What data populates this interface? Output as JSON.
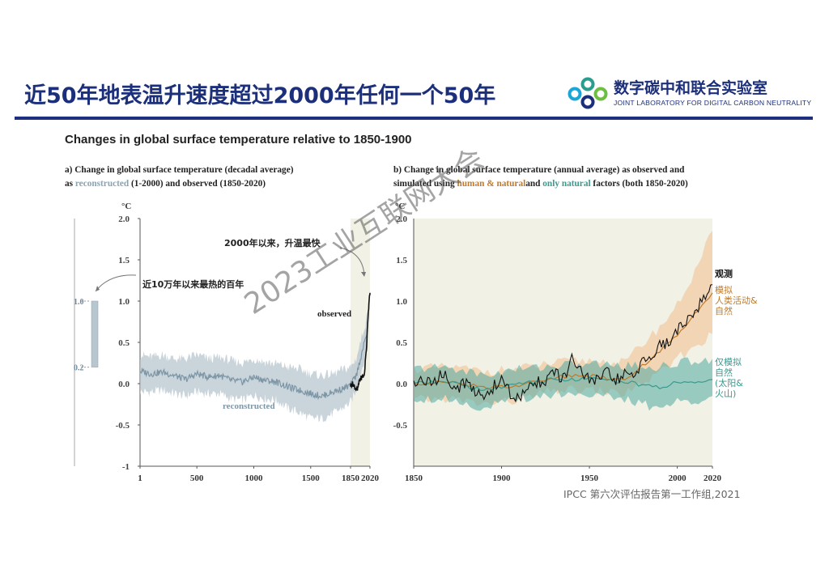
{
  "slide": {
    "title": "近50年地表温升速度超过2000年任何一个50年"
  },
  "logo": {
    "name": "数字碳中和联合实验室",
    "subtitle": "JOINT LABORATORY FOR DIGITAL CARBON NEUTRALITY"
  },
  "source": "IPCC 第六次评估报告第一工作组,2021",
  "watermark": "2023工业互联网大会",
  "chart_data": {
    "title": "Changes in global surface temperature relative to 1850-1900",
    "panels": [
      {
        "id": "a",
        "type": "line",
        "caption_line1": "a) Change in global surface temperature (decadal average)",
        "caption_line2_pre": "as ",
        "caption_line2_recon": "reconstructed",
        "caption_line2_post": " (1-2000) and  observed  (1850-2020)",
        "ylabel": "°C",
        "ylim": [
          -1,
          2
        ],
        "yticks": [
          "2.0",
          "1.5",
          "1.0",
          "0.5",
          "0.0",
          "-0.5",
          "-1"
        ],
        "ytick_values": [
          2.0,
          1.5,
          1.0,
          0.5,
          0.0,
          -0.5,
          -1.0
        ],
        "xticks": [
          "1",
          "500",
          "1000",
          "1500",
          "1850",
          "2020"
        ],
        "xtick_values": [
          1,
          500,
          1000,
          1500,
          1850,
          2020
        ],
        "xlim": [
          1,
          2020
        ],
        "highlight_range": [
          1850,
          2020
        ],
        "annotations": {
          "warmest": "近10万年以来最热的百年",
          "fastest": "2000年以来，升温最快",
          "observed_label": "observed",
          "reconstructed_label": "reconstructed"
        },
        "past_range": {
          "upper": "1.0",
          "lower": "0.2",
          "values": [
            0.2,
            1.0
          ]
        },
        "series": [
          {
            "name": "reconstructed",
            "x": [
              1,
              100,
              200,
              300,
              400,
              500,
              600,
              700,
              800,
              900,
              1000,
              1100,
              1200,
              1300,
              1400,
              1500,
              1600,
              1700,
              1800,
              1850,
              1900,
              2000
            ],
            "y": [
              0.15,
              0.12,
              0.14,
              0.1,
              0.05,
              0.12,
              0.08,
              0.1,
              0.04,
              0.02,
              0.08,
              0.04,
              0.02,
              -0.04,
              -0.08,
              -0.12,
              -0.15,
              -0.1,
              -0.05,
              -0.02,
              0.1,
              0.65
            ],
            "lower": [
              -0.1,
              -0.1,
              -0.08,
              -0.12,
              -0.15,
              -0.1,
              -0.12,
              -0.12,
              -0.18,
              -0.2,
              -0.14,
              -0.18,
              -0.2,
              -0.3,
              -0.35,
              -0.42,
              -0.42,
              -0.36,
              -0.28,
              -0.22,
              -0.08,
              0.45
            ],
            "upper": [
              0.35,
              0.32,
              0.35,
              0.3,
              0.3,
              0.35,
              0.3,
              0.32,
              0.28,
              0.25,
              0.3,
              0.26,
              0.24,
              0.2,
              0.18,
              0.12,
              0.1,
              0.12,
              0.18,
              0.2,
              0.3,
              0.85
            ]
          },
          {
            "name": "observed",
            "x": [
              1850,
              1870,
              1890,
              1910,
              1930,
              1950,
              1970,
              1990,
              2000,
              2010,
              2020
            ],
            "y": [
              -0.02,
              0.0,
              -0.05,
              -0.08,
              0.05,
              0.08,
              0.1,
              0.45,
              0.75,
              0.95,
              1.1
            ]
          }
        ]
      },
      {
        "id": "b",
        "type": "line",
        "caption_line1": "b) Change in global surface temperature (annual average) as  observed  and",
        "caption_line2_pre": "simulated using ",
        "caption_line2_human": "human & natural",
        "caption_line2_mid": "and ",
        "caption_line2_natural": "only natural",
        "caption_line2_post": " factors (both 1850-2020)",
        "ylabel": "°C",
        "ylim": [
          -1,
          2
        ],
        "yticks": [
          "2.0",
          "1.5",
          "1.0",
          "0.5",
          "0.0",
          "-0.5"
        ],
        "ytick_values": [
          2.0,
          1.5,
          1.0,
          0.5,
          0.0,
          -0.5
        ],
        "xticks": [
          "1850",
          "1900",
          "1950",
          "2000",
          "2020"
        ],
        "xtick_values": [
          1850,
          1900,
          1950,
          2000,
          2020
        ],
        "xlim": [
          1850,
          2020
        ],
        "legend": {
          "observed": "观测",
          "human_natural": [
            "模拟",
            "人类活动&",
            "自然"
          ],
          "natural_only": [
            "仅模拟",
            "自然",
            "(太阳&",
            "火山)"
          ]
        },
        "colors": {
          "observed": "#111111",
          "human_natural": "#c07a2a",
          "natural_only": "#3a9a8e"
        },
        "series": [
          {
            "name": "observed",
            "x": [
              1850,
              1855,
              1860,
              1865,
              1870,
              1875,
              1880,
              1885,
              1890,
              1895,
              1900,
              1905,
              1910,
              1915,
              1920,
              1925,
              1930,
              1935,
              1940,
              1945,
              1950,
              1955,
              1960,
              1965,
              1970,
              1975,
              1980,
              1985,
              1990,
              1995,
              2000,
              2005,
              2010,
              2015,
              2020
            ],
            "y": [
              0.0,
              0.05,
              -0.02,
              0.12,
              0.05,
              -0.05,
              0.02,
              -0.12,
              -0.15,
              -0.05,
              0.05,
              -0.12,
              -0.2,
              -0.05,
              0.02,
              0.05,
              0.12,
              0.05,
              0.28,
              0.18,
              0.02,
              0.05,
              0.12,
              0.05,
              0.1,
              0.05,
              0.3,
              0.3,
              0.45,
              0.5,
              0.62,
              0.78,
              0.9,
              1.0,
              1.2
            ]
          },
          {
            "name": "human_natural",
            "x": [
              1850,
              1870,
              1890,
              1910,
              1930,
              1950,
              1970,
              1980,
              1990,
              2000,
              2010,
              2020
            ],
            "y": [
              0.0,
              0.02,
              -0.05,
              -0.02,
              0.08,
              0.1,
              0.05,
              0.22,
              0.38,
              0.6,
              0.85,
              1.1
            ],
            "lower": [
              -0.2,
              -0.18,
              -0.25,
              -0.2,
              -0.08,
              -0.08,
              -0.12,
              0.0,
              0.12,
              0.3,
              0.45,
              0.6
            ],
            "upper": [
              0.18,
              0.2,
              0.15,
              0.18,
              0.25,
              0.28,
              0.25,
              0.48,
              0.68,
              0.95,
              1.35,
              1.85
            ]
          },
          {
            "name": "natural_only",
            "x": [
              1850,
              1870,
              1890,
              1910,
              1930,
              1950,
              1970,
              1990,
              2000,
              2010,
              2020
            ],
            "y": [
              0.0,
              0.02,
              -0.08,
              0.0,
              0.05,
              0.06,
              0.02,
              -0.05,
              0.02,
              0.02,
              0.05
            ],
            "lower": [
              -0.18,
              -0.18,
              -0.3,
              -0.18,
              -0.12,
              -0.12,
              -0.2,
              -0.3,
              -0.22,
              -0.2,
              -0.15
            ],
            "upper": [
              0.18,
              0.2,
              0.1,
              0.18,
              0.22,
              0.24,
              0.22,
              0.2,
              0.25,
              0.28,
              0.3
            ]
          }
        ]
      }
    ]
  }
}
